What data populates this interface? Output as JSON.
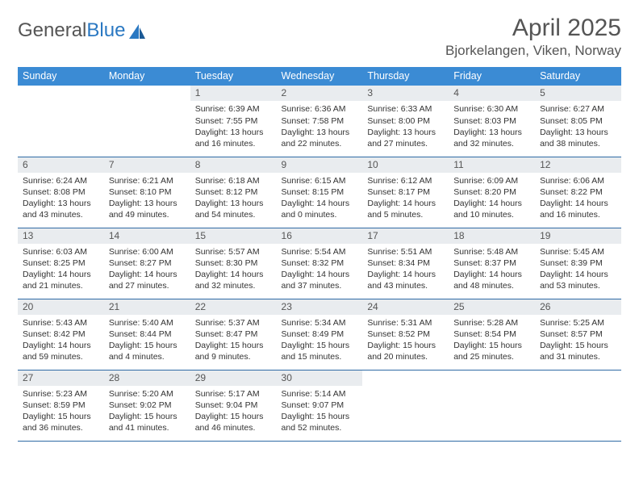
{
  "logo": {
    "part1": "General",
    "part2": "Blue"
  },
  "title": "April 2025",
  "location": "Bjorkelangen, Viken, Norway",
  "colors": {
    "header_bg": "#3b8bd4",
    "header_text": "#ffffff",
    "daynum_bg": "#e9ecef",
    "row_border": "#2f6aa5",
    "logo_blue": "#2a78c2",
    "text": "#333333",
    "muted": "#555555"
  },
  "weekdays": [
    "Sunday",
    "Monday",
    "Tuesday",
    "Wednesday",
    "Thursday",
    "Friday",
    "Saturday"
  ],
  "weeks": [
    [
      null,
      null,
      {
        "n": "1",
        "sr": "6:39 AM",
        "ss": "7:55 PM",
        "dl": "13 hours and 16 minutes."
      },
      {
        "n": "2",
        "sr": "6:36 AM",
        "ss": "7:58 PM",
        "dl": "13 hours and 22 minutes."
      },
      {
        "n": "3",
        "sr": "6:33 AM",
        "ss": "8:00 PM",
        "dl": "13 hours and 27 minutes."
      },
      {
        "n": "4",
        "sr": "6:30 AM",
        "ss": "8:03 PM",
        "dl": "13 hours and 32 minutes."
      },
      {
        "n": "5",
        "sr": "6:27 AM",
        "ss": "8:05 PM",
        "dl": "13 hours and 38 minutes."
      }
    ],
    [
      {
        "n": "6",
        "sr": "6:24 AM",
        "ss": "8:08 PM",
        "dl": "13 hours and 43 minutes."
      },
      {
        "n": "7",
        "sr": "6:21 AM",
        "ss": "8:10 PM",
        "dl": "13 hours and 49 minutes."
      },
      {
        "n": "8",
        "sr": "6:18 AM",
        "ss": "8:12 PM",
        "dl": "13 hours and 54 minutes."
      },
      {
        "n": "9",
        "sr": "6:15 AM",
        "ss": "8:15 PM",
        "dl": "14 hours and 0 minutes."
      },
      {
        "n": "10",
        "sr": "6:12 AM",
        "ss": "8:17 PM",
        "dl": "14 hours and 5 minutes."
      },
      {
        "n": "11",
        "sr": "6:09 AM",
        "ss": "8:20 PM",
        "dl": "14 hours and 10 minutes."
      },
      {
        "n": "12",
        "sr": "6:06 AM",
        "ss": "8:22 PM",
        "dl": "14 hours and 16 minutes."
      }
    ],
    [
      {
        "n": "13",
        "sr": "6:03 AM",
        "ss": "8:25 PM",
        "dl": "14 hours and 21 minutes."
      },
      {
        "n": "14",
        "sr": "6:00 AM",
        "ss": "8:27 PM",
        "dl": "14 hours and 27 minutes."
      },
      {
        "n": "15",
        "sr": "5:57 AM",
        "ss": "8:30 PM",
        "dl": "14 hours and 32 minutes."
      },
      {
        "n": "16",
        "sr": "5:54 AM",
        "ss": "8:32 PM",
        "dl": "14 hours and 37 minutes."
      },
      {
        "n": "17",
        "sr": "5:51 AM",
        "ss": "8:34 PM",
        "dl": "14 hours and 43 minutes."
      },
      {
        "n": "18",
        "sr": "5:48 AM",
        "ss": "8:37 PM",
        "dl": "14 hours and 48 minutes."
      },
      {
        "n": "19",
        "sr": "5:45 AM",
        "ss": "8:39 PM",
        "dl": "14 hours and 53 minutes."
      }
    ],
    [
      {
        "n": "20",
        "sr": "5:43 AM",
        "ss": "8:42 PM",
        "dl": "14 hours and 59 minutes."
      },
      {
        "n": "21",
        "sr": "5:40 AM",
        "ss": "8:44 PM",
        "dl": "15 hours and 4 minutes."
      },
      {
        "n": "22",
        "sr": "5:37 AM",
        "ss": "8:47 PM",
        "dl": "15 hours and 9 minutes."
      },
      {
        "n": "23",
        "sr": "5:34 AM",
        "ss": "8:49 PM",
        "dl": "15 hours and 15 minutes."
      },
      {
        "n": "24",
        "sr": "5:31 AM",
        "ss": "8:52 PM",
        "dl": "15 hours and 20 minutes."
      },
      {
        "n": "25",
        "sr": "5:28 AM",
        "ss": "8:54 PM",
        "dl": "15 hours and 25 minutes."
      },
      {
        "n": "26",
        "sr": "5:25 AM",
        "ss": "8:57 PM",
        "dl": "15 hours and 31 minutes."
      }
    ],
    [
      {
        "n": "27",
        "sr": "5:23 AM",
        "ss": "8:59 PM",
        "dl": "15 hours and 36 minutes."
      },
      {
        "n": "28",
        "sr": "5:20 AM",
        "ss": "9:02 PM",
        "dl": "15 hours and 41 minutes."
      },
      {
        "n": "29",
        "sr": "5:17 AM",
        "ss": "9:04 PM",
        "dl": "15 hours and 46 minutes."
      },
      {
        "n": "30",
        "sr": "5:14 AM",
        "ss": "9:07 PM",
        "dl": "15 hours and 52 minutes."
      },
      null,
      null,
      null
    ]
  ],
  "labels": {
    "sunrise": "Sunrise:",
    "sunset": "Sunset:",
    "daylight": "Daylight:"
  }
}
